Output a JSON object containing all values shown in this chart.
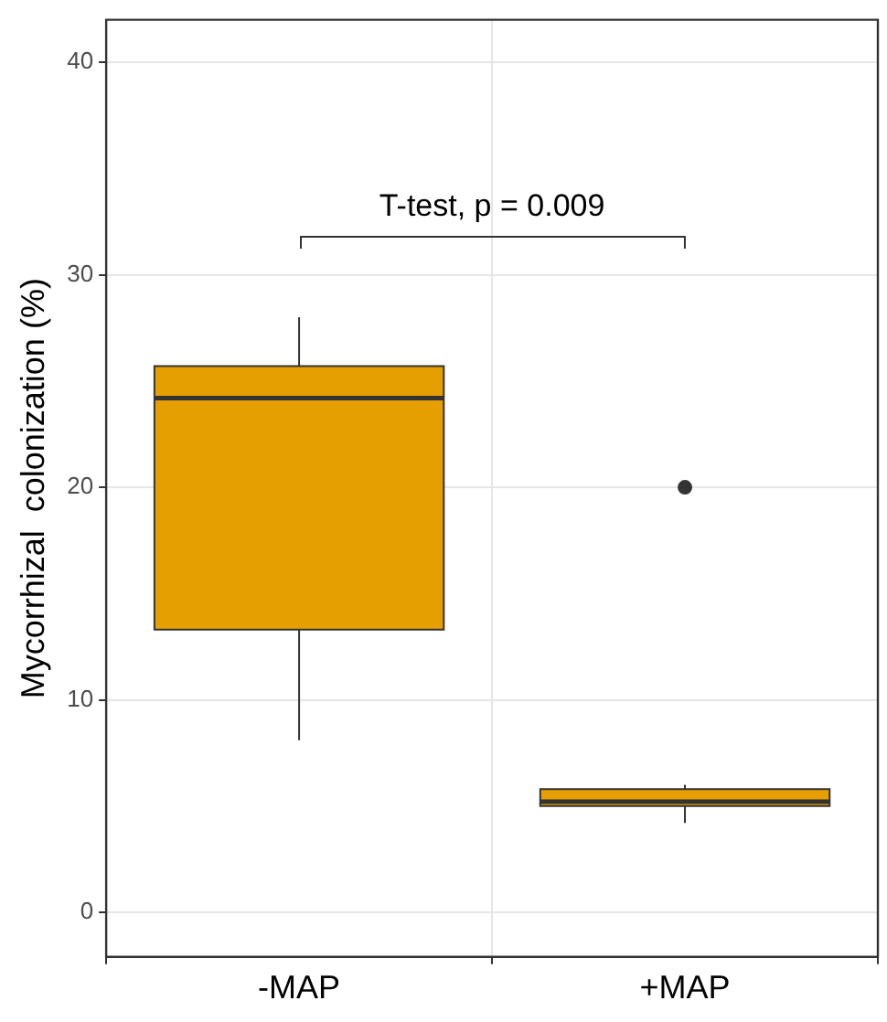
{
  "chart_data": {
    "type": "box",
    "ylabel": "Mycorrhizal  colonization (%)",
    "categories": [
      "-MAP",
      "+MAP"
    ],
    "boxes": [
      {
        "low": 8.1,
        "q1": 13.3,
        "median": 24.2,
        "q3": 25.7,
        "high": 28.0
      },
      {
        "low": 4.2,
        "q1": 5.0,
        "median": 5.2,
        "q3": 5.8,
        "high": 6.0,
        "outliers": [
          20.0
        ]
      }
    ],
    "color": "#e69f00",
    "ylim": [
      -2.1,
      42
    ],
    "yticks": [
      0,
      10,
      20,
      30,
      40
    ],
    "grid": true,
    "legend": false,
    "annotations": [
      "T-test, p = 0.009"
    ]
  }
}
